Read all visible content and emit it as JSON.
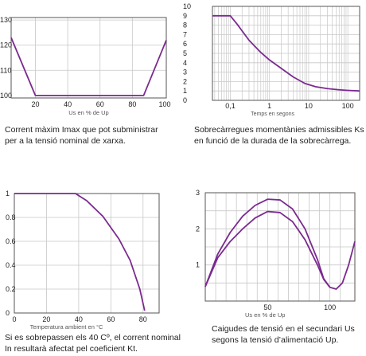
{
  "chart_data": [
    {
      "id": "imax",
      "type": "line",
      "xlabel": "Us en % de Up",
      "xlim": [
        5,
        101
      ],
      "ylim": [
        99,
        131
      ],
      "xticks": [
        20,
        40,
        60,
        80,
        100
      ],
      "yticks": [
        100,
        110,
        120,
        130
      ],
      "series": [
        {
          "x": [
            5,
            20,
            40,
            60,
            80,
            87,
            101
          ],
          "y": [
            123,
            100,
            100,
            100,
            100,
            100,
            122
          ]
        }
      ],
      "caption": [
        "Corrent màxim Imax que pot subministrar",
        "per a la tensió nominal de xarxa."
      ],
      "color": "#7b2a8f"
    },
    {
      "id": "overload",
      "type": "line",
      "xscale": "log",
      "xlabel": "Temps en segons",
      "xlim": [
        0.035,
        200
      ],
      "ylim": [
        0,
        10
      ],
      "xtick_labels": [
        "0,1",
        "1",
        "10",
        "100"
      ],
      "xtick_values": [
        0.1,
        1,
        10,
        100
      ],
      "yticks": [
        0,
        1,
        2,
        3,
        4,
        5,
        6,
        7,
        8,
        9,
        10
      ],
      "series": [
        {
          "x": [
            0.035,
            0.1,
            0.15,
            0.3,
            0.6,
            1,
            2,
            4,
            8,
            15,
            30,
            60,
            100,
            200
          ],
          "y": [
            9,
            9,
            8.1,
            6.4,
            5.1,
            4.3,
            3.4,
            2.5,
            1.8,
            1.45,
            1.25,
            1.12,
            1.06,
            1.0
          ]
        }
      ],
      "caption": [
        "Sobrecàrregues momentànies admissibles Ks",
        "en funció de la durada de la sobrecàrrega."
      ],
      "color": "#7b2a8f"
    },
    {
      "id": "kt",
      "type": "line",
      "xlabel": "Temperatura ambient en °C",
      "xlim": [
        0,
        90
      ],
      "ylim": [
        0,
        1
      ],
      "xticks": [
        0,
        20,
        40,
        60,
        80
      ],
      "ytick_labels": [
        "0",
        "0.2",
        "0.4",
        "0.6",
        "0.8",
        "1"
      ],
      "ytick_values": [
        0,
        0.2,
        0.4,
        0.6,
        0.8,
        1
      ],
      "series": [
        {
          "x": [
            0,
            20,
            38,
            45,
            55,
            65,
            72,
            78,
            81
          ],
          "y": [
            1,
            1,
            1,
            0.94,
            0.81,
            0.62,
            0.44,
            0.2,
            0.02
          ]
        }
      ],
      "caption": [
        "Si es sobrepassen els 40 Cº, el corrent nominal",
        "In resultarà afectat pel coeficient Kt."
      ],
      "color": "#7b2a8f"
    },
    {
      "id": "us",
      "type": "line",
      "xlabel": "Us en % de Up",
      "xlim": [
        0,
        120
      ],
      "ylim": [
        0,
        3
      ],
      "xticks": [
        50,
        100
      ],
      "yticks": [
        1,
        2,
        3
      ],
      "series": [
        {
          "x": [
            0,
            10,
            20,
            30,
            40,
            50,
            60,
            70,
            80,
            90,
            95,
            100,
            105,
            110,
            115,
            120
          ],
          "y": [
            0.4,
            1.3,
            1.9,
            2.35,
            2.65,
            2.82,
            2.8,
            2.55,
            2.0,
            1.15,
            0.62,
            0.38,
            0.33,
            0.5,
            1.0,
            1.65
          ]
        },
        {
          "x": [
            0,
            10,
            20,
            30,
            40,
            50,
            60,
            70,
            80,
            90,
            95,
            100
          ],
          "y": [
            0.4,
            1.2,
            1.65,
            2.0,
            2.3,
            2.48,
            2.45,
            2.2,
            1.7,
            1.0,
            0.6,
            0.38
          ]
        }
      ],
      "caption": [
        "Caigudes de tensió en el secundari Us",
        "segons la tensió d’alimentació Up."
      ],
      "color": "#7b2a8f"
    }
  ]
}
